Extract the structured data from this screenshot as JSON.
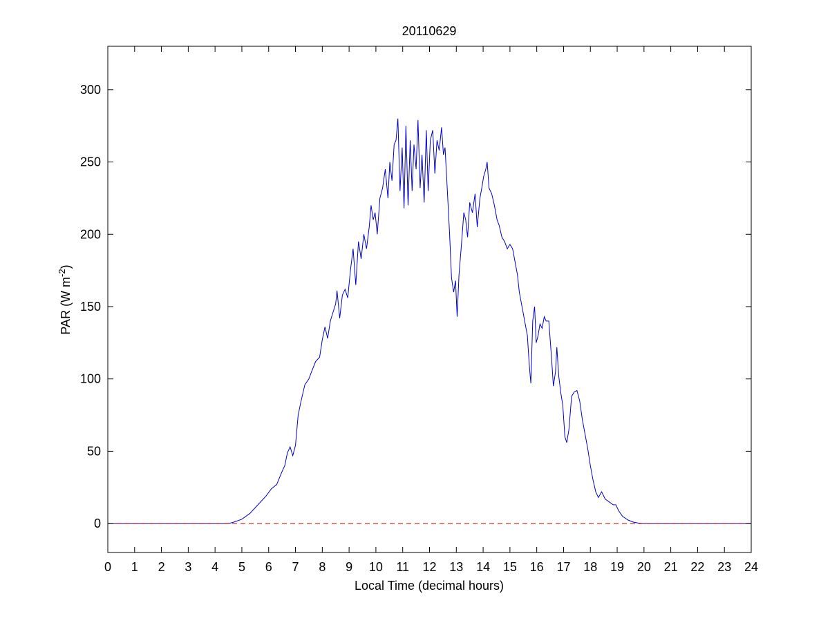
{
  "chart_data": {
    "type": "line",
    "title": "20110629",
    "xlabel": "Local Time (decimal hours)",
    "ylabel": "PAR (W m",
    "ylabel_exponent": "-2",
    "ylabel_close": ")",
    "xlim": [
      0,
      24
    ],
    "ylim": [
      -20,
      330
    ],
    "xticks": [
      0,
      1,
      2,
      3,
      4,
      5,
      6,
      7,
      8,
      9,
      10,
      11,
      12,
      13,
      14,
      15,
      16,
      17,
      18,
      19,
      20,
      21,
      22,
      23,
      24
    ],
    "yticks": [
      0,
      50,
      100,
      150,
      200,
      250,
      300
    ],
    "grid": false,
    "series": [
      {
        "color": "#0000cc",
        "style": "solid",
        "points": [
          [
            0,
            0
          ],
          [
            4.5,
            0
          ],
          [
            4.7,
            1
          ],
          [
            5.0,
            3
          ],
          [
            5.3,
            7
          ],
          [
            5.6,
            13
          ],
          [
            5.9,
            19
          ],
          [
            6.1,
            24
          ],
          [
            6.3,
            27
          ],
          [
            6.5,
            36
          ],
          [
            6.6,
            40
          ],
          [
            6.7,
            49
          ],
          [
            6.8,
            53
          ],
          [
            6.9,
            47
          ],
          [
            7.0,
            54
          ],
          [
            7.1,
            75
          ],
          [
            7.2,
            84
          ],
          [
            7.35,
            96
          ],
          [
            7.5,
            100
          ],
          [
            7.6,
            105
          ],
          [
            7.75,
            112
          ],
          [
            7.9,
            115
          ],
          [
            8.0,
            127
          ],
          [
            8.1,
            136
          ],
          [
            8.2,
            128
          ],
          [
            8.3,
            140
          ],
          [
            8.4,
            146
          ],
          [
            8.5,
            152
          ],
          [
            8.55,
            161
          ],
          [
            8.65,
            142
          ],
          [
            8.75,
            158
          ],
          [
            8.85,
            162
          ],
          [
            8.95,
            156
          ],
          [
            9.05,
            175
          ],
          [
            9.15,
            190
          ],
          [
            9.25,
            165
          ],
          [
            9.35,
            195
          ],
          [
            9.45,
            183
          ],
          [
            9.55,
            200
          ],
          [
            9.65,
            190
          ],
          [
            9.75,
            205
          ],
          [
            9.82,
            220
          ],
          [
            9.9,
            210
          ],
          [
            9.97,
            215
          ],
          [
            10.05,
            200
          ],
          [
            10.15,
            225
          ],
          [
            10.25,
            232
          ],
          [
            10.35,
            245
          ],
          [
            10.45,
            225
          ],
          [
            10.52,
            250
          ],
          [
            10.6,
            237
          ],
          [
            10.68,
            262
          ],
          [
            10.75,
            265
          ],
          [
            10.82,
            280
          ],
          [
            10.9,
            230
          ],
          [
            10.98,
            260
          ],
          [
            11.05,
            218
          ],
          [
            11.12,
            275
          ],
          [
            11.2,
            220
          ],
          [
            11.28,
            265
          ],
          [
            11.35,
            230
          ],
          [
            11.42,
            262
          ],
          [
            11.5,
            245
          ],
          [
            11.57,
            279
          ],
          [
            11.65,
            232
          ],
          [
            11.72,
            255
          ],
          [
            11.8,
            222
          ],
          [
            11.88,
            272
          ],
          [
            11.95,
            230
          ],
          [
            12.03,
            265
          ],
          [
            12.12,
            272
          ],
          [
            12.2,
            242
          ],
          [
            12.28,
            265
          ],
          [
            12.36,
            258
          ],
          [
            12.45,
            274
          ],
          [
            12.52,
            255
          ],
          [
            12.58,
            260
          ],
          [
            12.68,
            225
          ],
          [
            12.75,
            200
          ],
          [
            12.82,
            170
          ],
          [
            12.9,
            160
          ],
          [
            12.97,
            168
          ],
          [
            13.03,
            143
          ],
          [
            13.1,
            172
          ],
          [
            13.2,
            195
          ],
          [
            13.28,
            215
          ],
          [
            13.35,
            210
          ],
          [
            13.42,
            198
          ],
          [
            13.5,
            222
          ],
          [
            13.6,
            215
          ],
          [
            13.7,
            228
          ],
          [
            13.78,
            205
          ],
          [
            13.88,
            225
          ],
          [
            13.95,
            232
          ],
          [
            14.02,
            240
          ],
          [
            14.1,
            245
          ],
          [
            14.15,
            250
          ],
          [
            14.22,
            232
          ],
          [
            14.32,
            228
          ],
          [
            14.42,
            220
          ],
          [
            14.52,
            210
          ],
          [
            14.6,
            206
          ],
          [
            14.7,
            198
          ],
          [
            14.8,
            195
          ],
          [
            14.9,
            190
          ],
          [
            15.0,
            193
          ],
          [
            15.1,
            190
          ],
          [
            15.2,
            180
          ],
          [
            15.28,
            172
          ],
          [
            15.35,
            160
          ],
          [
            15.45,
            150
          ],
          [
            15.55,
            140
          ],
          [
            15.65,
            130
          ],
          [
            15.72,
            110
          ],
          [
            15.78,
            97
          ],
          [
            15.85,
            140
          ],
          [
            15.92,
            150
          ],
          [
            15.98,
            125
          ],
          [
            16.05,
            130
          ],
          [
            16.12,
            138
          ],
          [
            16.2,
            135
          ],
          [
            16.28,
            143
          ],
          [
            16.35,
            140
          ],
          [
            16.45,
            140
          ],
          [
            16.55,
            115
          ],
          [
            16.62,
            95
          ],
          [
            16.7,
            105
          ],
          [
            16.75,
            122
          ],
          [
            16.82,
            102
          ],
          [
            16.9,
            90
          ],
          [
            16.97,
            82
          ],
          [
            17.05,
            60
          ],
          [
            17.12,
            56
          ],
          [
            17.2,
            65
          ],
          [
            17.3,
            88
          ],
          [
            17.4,
            91
          ],
          [
            17.5,
            92
          ],
          [
            17.6,
            85
          ],
          [
            17.7,
            72
          ],
          [
            17.8,
            62
          ],
          [
            17.9,
            52
          ],
          [
            18.0,
            40
          ],
          [
            18.1,
            30
          ],
          [
            18.2,
            22
          ],
          [
            18.3,
            18
          ],
          [
            18.42,
            22
          ],
          [
            18.55,
            17
          ],
          [
            18.7,
            15
          ],
          [
            18.85,
            13
          ],
          [
            18.95,
            13
          ],
          [
            19.05,
            9
          ],
          [
            19.2,
            5
          ],
          [
            19.4,
            2.5
          ],
          [
            19.6,
            1
          ],
          [
            19.8,
            0.3
          ],
          [
            20.0,
            0
          ],
          [
            24,
            0
          ]
        ]
      },
      {
        "color": "#cc0000",
        "style": "dashed",
        "points": [
          [
            0,
            0
          ],
          [
            24,
            0
          ]
        ]
      }
    ]
  }
}
